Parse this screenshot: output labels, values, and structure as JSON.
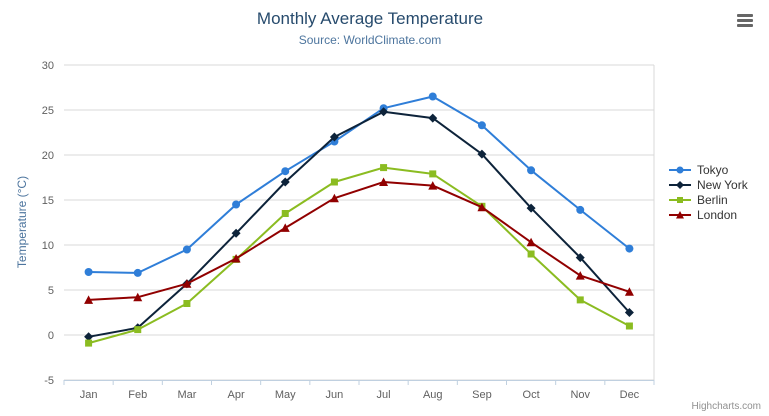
{
  "credit": "Highcharts.com",
  "chart_data": {
    "type": "line",
    "title": "Monthly Average Temperature",
    "subtitle": "Source: WorldClimate.com",
    "categories": [
      "Jan",
      "Feb",
      "Mar",
      "Apr",
      "May",
      "Jun",
      "Jul",
      "Aug",
      "Sep",
      "Oct",
      "Nov",
      "Dec"
    ],
    "series": [
      {
        "name": "Tokyo",
        "color": "#2f7ed8",
        "marker": "circle",
        "values": [
          7.0,
          6.9,
          9.5,
          14.5,
          18.2,
          21.5,
          25.2,
          26.5,
          23.3,
          18.3,
          13.9,
          9.6
        ]
      },
      {
        "name": "New York",
        "color": "#0d233a",
        "marker": "diamond",
        "values": [
          -0.2,
          0.8,
          5.7,
          11.3,
          17.0,
          22.0,
          24.8,
          24.1,
          20.1,
          14.1,
          8.6,
          2.5
        ]
      },
      {
        "name": "Berlin",
        "color": "#8bbc21",
        "marker": "square",
        "values": [
          -0.9,
          0.6,
          3.5,
          8.4,
          13.5,
          17.0,
          18.6,
          17.9,
          14.3,
          9.0,
          3.9,
          1.0
        ]
      },
      {
        "name": "London",
        "color": "#910000",
        "marker": "triangle",
        "values": [
          3.9,
          4.2,
          5.7,
          8.5,
          11.9,
          15.2,
          17.0,
          16.6,
          14.2,
          10.3,
          6.6,
          4.8
        ]
      }
    ],
    "xlabel": "",
    "ylabel": "Temperature (°C)",
    "ylim": [
      -5,
      30
    ],
    "ytick_interval": 5,
    "grid": true,
    "legend_position": "right"
  },
  "colors": {
    "grid_line": "#d8d8d8",
    "axis_line": "#c0d0e0",
    "tick_label": "#606060",
    "title": "#274b6d",
    "subtitle": "#4d759e"
  }
}
